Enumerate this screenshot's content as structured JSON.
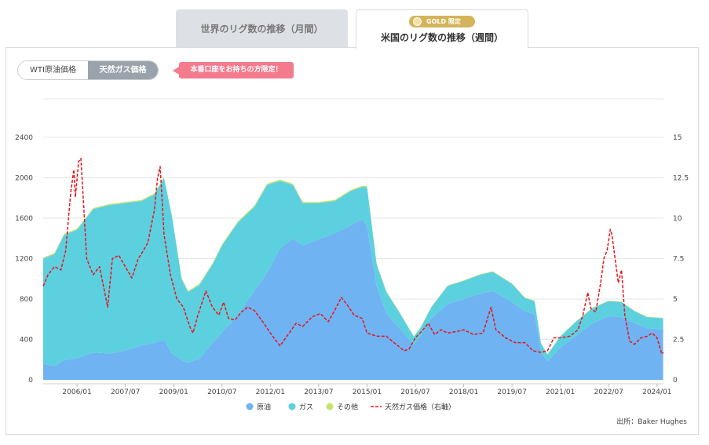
{
  "tabs": {
    "monthly_label": "世界のリグ数の推移（月間）",
    "weekly_label": "米国のリグ数の推移（週間）",
    "gold_badge": "GOLD 限定"
  },
  "toggle": {
    "wti_label": "WTI原油価格",
    "gas_label": "天然ガス価格"
  },
  "notice": "本番口座をお持ちの方限定！",
  "source": "出所：Baker Hughes",
  "colors": {
    "oil": "#6fb3f2",
    "gas": "#5dd0e0",
    "other": "#c6e36b",
    "price": "#e8141a"
  },
  "chart_data": {
    "type": "area",
    "x_tick_labels": [
      "2006/01",
      "2007/07",
      "2009/01",
      "2010/07",
      "2012/01",
      "2013/07",
      "2015/01",
      "2016/07",
      "2018/01",
      "2019/07",
      "2021/01",
      "2022/07",
      "2024/01"
    ],
    "x_tick_values": [
      2006.0,
      2007.5,
      2009.0,
      2010.5,
      2012.0,
      2013.5,
      2015.0,
      2016.5,
      2018.0,
      2019.5,
      2021.0,
      2022.5,
      2024.0
    ],
    "xlim": [
      2004.95,
      2024.2
    ],
    "y_left_ticks": [
      0,
      400,
      800,
      1200,
      1600,
      2000,
      2400
    ],
    "y_left_lim": [
      0,
      2400
    ],
    "y_right_ticks": [
      "0",
      "2.5",
      "5",
      "7.5",
      "10",
      "12.5",
      "15"
    ],
    "y_right_lim": [
      0,
      15
    ],
    "legend_position": "bottom",
    "series": [
      {
        "name": "原油",
        "axis": "left",
        "color": "#6fb3f2",
        "points": [
          [
            2004.95,
            160
          ],
          [
            2005.3,
            135
          ],
          [
            2005.6,
            195
          ],
          [
            2006.0,
            215
          ],
          [
            2006.5,
            270
          ],
          [
            2007.0,
            260
          ],
          [
            2007.5,
            290
          ],
          [
            2008.0,
            340
          ],
          [
            2008.4,
            365
          ],
          [
            2008.7,
            400
          ],
          [
            2008.95,
            260
          ],
          [
            2009.25,
            195
          ],
          [
            2009.45,
            170
          ],
          [
            2009.8,
            210
          ],
          [
            2010.2,
            360
          ],
          [
            2010.5,
            470
          ],
          [
            2011.0,
            640
          ],
          [
            2011.5,
            880
          ],
          [
            2011.9,
            1060
          ],
          [
            2012.3,
            1300
          ],
          [
            2012.7,
            1400
          ],
          [
            2013.0,
            1330
          ],
          [
            2013.5,
            1390
          ],
          [
            2014.0,
            1450
          ],
          [
            2014.5,
            1530
          ],
          [
            2014.85,
            1590
          ],
          [
            2015.0,
            1520
          ],
          [
            2015.3,
            920
          ],
          [
            2015.6,
            660
          ],
          [
            2016.0,
            510
          ],
          [
            2016.45,
            350
          ],
          [
            2016.65,
            430
          ],
          [
            2017.0,
            610
          ],
          [
            2017.5,
            750
          ],
          [
            2018.0,
            800
          ],
          [
            2018.5,
            850
          ],
          [
            2018.9,
            880
          ],
          [
            2019.5,
            770
          ],
          [
            2019.9,
            680
          ],
          [
            2020.2,
            650
          ],
          [
            2020.4,
            280
          ],
          [
            2020.6,
            180
          ],
          [
            2021.0,
            320
          ],
          [
            2021.5,
            440
          ],
          [
            2022.0,
            560
          ],
          [
            2022.5,
            630
          ],
          [
            2022.9,
            620
          ],
          [
            2023.3,
            560
          ],
          [
            2023.7,
            510
          ],
          [
            2024.2,
            500
          ]
        ]
      },
      {
        "name": "ガス",
        "axis": "left",
        "color": "#5dd0e0",
        "points": [
          [
            2004.95,
            1040
          ],
          [
            2005.3,
            1110
          ],
          [
            2005.6,
            1240
          ],
          [
            2006.0,
            1270
          ],
          [
            2006.5,
            1420
          ],
          [
            2007.0,
            1470
          ],
          [
            2007.5,
            1460
          ],
          [
            2008.0,
            1430
          ],
          [
            2008.4,
            1470
          ],
          [
            2008.7,
            1600
          ],
          [
            2008.95,
            1350
          ],
          [
            2009.25,
            800
          ],
          [
            2009.45,
            700
          ],
          [
            2009.8,
            730
          ],
          [
            2010.2,
            780
          ],
          [
            2010.5,
            860
          ],
          [
            2011.0,
            920
          ],
          [
            2011.5,
            830
          ],
          [
            2011.9,
            870
          ],
          [
            2012.3,
            670
          ],
          [
            2012.7,
            530
          ],
          [
            2013.0,
            420
          ],
          [
            2013.5,
            360
          ],
          [
            2014.0,
            320
          ],
          [
            2014.5,
            340
          ],
          [
            2014.85,
            320
          ],
          [
            2015.0,
            390
          ],
          [
            2015.3,
            220
          ],
          [
            2015.6,
            210
          ],
          [
            2016.0,
            160
          ],
          [
            2016.45,
            80
          ],
          [
            2016.65,
            80
          ],
          [
            2017.0,
            110
          ],
          [
            2017.5,
            180
          ],
          [
            2018.0,
            180
          ],
          [
            2018.5,
            190
          ],
          [
            2018.9,
            190
          ],
          [
            2019.5,
            180
          ],
          [
            2019.9,
            130
          ],
          [
            2020.2,
            130
          ],
          [
            2020.4,
            80
          ],
          [
            2020.6,
            70
          ],
          [
            2021.0,
            110
          ],
          [
            2021.5,
            140
          ],
          [
            2022.0,
            150
          ],
          [
            2022.5,
            150
          ],
          [
            2022.9,
            150
          ],
          [
            2023.3,
            120
          ],
          [
            2023.7,
            110
          ],
          [
            2024.2,
            110
          ]
        ]
      },
      {
        "name": "その他",
        "axis": "left",
        "color": "#c6e36b",
        "points": [
          [
            2004.95,
            10
          ],
          [
            2008.0,
            10
          ],
          [
            2012.0,
            12
          ],
          [
            2015.0,
            10
          ],
          [
            2016.5,
            4
          ],
          [
            2020.0,
            5
          ],
          [
            2024.2,
            4
          ]
        ]
      },
      {
        "name": "天然ガス価格（右軸）",
        "axis": "right",
        "style": "dashed",
        "color": "#e8141a",
        "points": [
          [
            2004.95,
            5.8
          ],
          [
            2005.1,
            6.5
          ],
          [
            2005.3,
            7.0
          ],
          [
            2005.5,
            6.8
          ],
          [
            2005.65,
            8.0
          ],
          [
            2005.8,
            11.5
          ],
          [
            2005.9,
            13.0
          ],
          [
            2005.95,
            11.3
          ],
          [
            2006.05,
            13.5
          ],
          [
            2006.12,
            13.7
          ],
          [
            2006.2,
            11.0
          ],
          [
            2006.3,
            7.5
          ],
          [
            2006.5,
            6.5
          ],
          [
            2006.7,
            7.0
          ],
          [
            2006.85,
            5.5
          ],
          [
            2006.95,
            4.5
          ],
          [
            2007.1,
            7.5
          ],
          [
            2007.3,
            7.7
          ],
          [
            2007.5,
            7.0
          ],
          [
            2007.7,
            6.3
          ],
          [
            2007.9,
            7.5
          ],
          [
            2008.0,
            7.8
          ],
          [
            2008.2,
            8.5
          ],
          [
            2008.4,
            10.5
          ],
          [
            2008.5,
            12.5
          ],
          [
            2008.58,
            13.2
          ],
          [
            2008.7,
            9.0
          ],
          [
            2008.9,
            6.5
          ],
          [
            2009.1,
            5.0
          ],
          [
            2009.3,
            4.5
          ],
          [
            2009.5,
            3.3
          ],
          [
            2009.6,
            2.9
          ],
          [
            2009.75,
            4.0
          ],
          [
            2010.0,
            5.5
          ],
          [
            2010.2,
            4.5
          ],
          [
            2010.4,
            4.0
          ],
          [
            2010.55,
            4.8
          ],
          [
            2010.7,
            3.8
          ],
          [
            2010.9,
            3.7
          ],
          [
            2011.1,
            4.2
          ],
          [
            2011.3,
            4.5
          ],
          [
            2011.5,
            4.3
          ],
          [
            2011.8,
            3.5
          ],
          [
            2012.0,
            2.9
          ],
          [
            2012.3,
            2.1
          ],
          [
            2012.55,
            2.8
          ],
          [
            2012.8,
            3.5
          ],
          [
            2013.0,
            3.3
          ],
          [
            2013.3,
            3.9
          ],
          [
            2013.55,
            4.1
          ],
          [
            2013.8,
            3.6
          ],
          [
            2014.0,
            4.3
          ],
          [
            2014.2,
            5.1
          ],
          [
            2014.4,
            4.6
          ],
          [
            2014.6,
            4.0
          ],
          [
            2014.85,
            3.8
          ],
          [
            2015.0,
            2.9
          ],
          [
            2015.3,
            2.7
          ],
          [
            2015.6,
            2.7
          ],
          [
            2015.9,
            2.2
          ],
          [
            2016.15,
            1.8
          ],
          [
            2016.3,
            1.9
          ],
          [
            2016.5,
            2.6
          ],
          [
            2016.7,
            3.0
          ],
          [
            2016.9,
            3.5
          ],
          [
            2017.1,
            2.8
          ],
          [
            2017.3,
            3.1
          ],
          [
            2017.5,
            2.9
          ],
          [
            2017.8,
            3.0
          ],
          [
            2018.0,
            3.1
          ],
          [
            2018.3,
            2.8
          ],
          [
            2018.6,
            2.9
          ],
          [
            2018.85,
            4.5
          ],
          [
            2019.0,
            3.1
          ],
          [
            2019.3,
            2.6
          ],
          [
            2019.6,
            2.3
          ],
          [
            2019.9,
            2.3
          ],
          [
            2020.15,
            1.8
          ],
          [
            2020.4,
            1.7
          ],
          [
            2020.6,
            1.8
          ],
          [
            2020.8,
            2.6
          ],
          [
            2021.0,
            2.6
          ],
          [
            2021.3,
            2.7
          ],
          [
            2021.55,
            3.1
          ],
          [
            2021.7,
            4.0
          ],
          [
            2021.85,
            5.4
          ],
          [
            2021.95,
            4.4
          ],
          [
            2022.1,
            4.2
          ],
          [
            2022.25,
            6.0
          ],
          [
            2022.35,
            7.5
          ],
          [
            2022.45,
            8.0
          ],
          [
            2022.55,
            9.3
          ],
          [
            2022.6,
            9.0
          ],
          [
            2022.7,
            7.5
          ],
          [
            2022.8,
            6.0
          ],
          [
            2022.9,
            6.8
          ],
          [
            2023.0,
            4.0
          ],
          [
            2023.15,
            2.4
          ],
          [
            2023.3,
            2.2
          ],
          [
            2023.5,
            2.6
          ],
          [
            2023.7,
            2.7
          ],
          [
            2023.85,
            2.9
          ],
          [
            2024.0,
            2.6
          ],
          [
            2024.15,
            1.6
          ],
          [
            2024.2,
            1.7
          ]
        ]
      }
    ]
  }
}
